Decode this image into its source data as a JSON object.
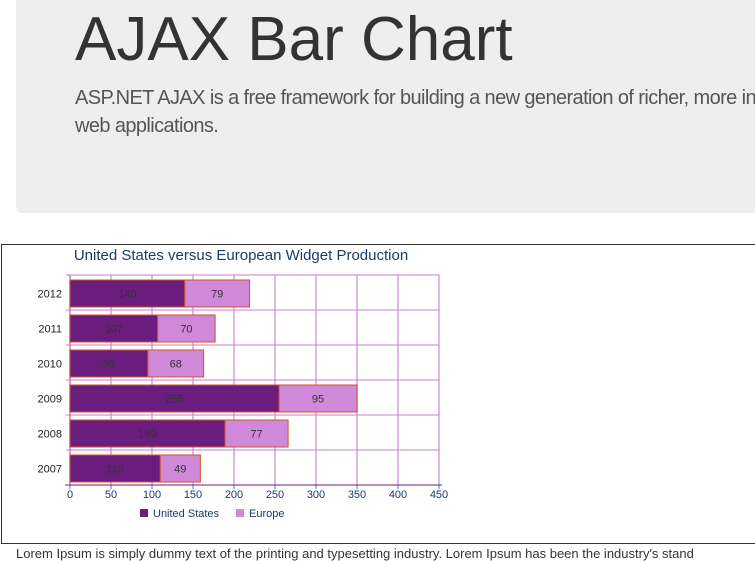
{
  "header": {
    "title": "AJAX Bar Chart",
    "lead_line1": "ASP.NET AJAX is a free framework for building a new generation of richer, more in",
    "lead_line2": "web applications."
  },
  "footer_text": "Lorem Ipsum is simply dummy text of the printing and typesetting industry. Lorem Ipsum has been the industry's stand",
  "chart_data": {
    "type": "bar",
    "orientation": "horizontal",
    "stacked": true,
    "title": "United States versus European Widget Production",
    "categories": [
      "2012",
      "2011",
      "2010",
      "2009",
      "2008",
      "2007"
    ],
    "series": [
      {
        "name": "United States",
        "values": [
          140,
          107,
          95,
          255,
          189,
          110
        ],
        "color": "#6b1d7e"
      },
      {
        "name": "Europe",
        "values": [
          79,
          70,
          68,
          95,
          77,
          49
        ],
        "color": "#d088d8"
      }
    ],
    "xlim": [
      0,
      450
    ],
    "xticks": [
      0,
      50,
      100,
      150,
      200,
      250,
      300,
      350,
      400,
      450
    ],
    "grid": true,
    "grid_color": "#e0b8e6",
    "bar_border_color": "#d2522a",
    "legend_position": "bottom"
  }
}
